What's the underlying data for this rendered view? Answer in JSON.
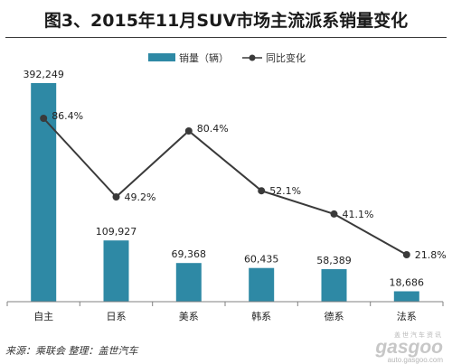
{
  "title": "图3、2015年11月SUV市场主流派系销量变化",
  "source": "来源：乘联会  整理：盖世汽车",
  "watermark": {
    "top": "盖世汽车资讯",
    "logo": "gasgoo",
    "url": "auto.gasgoo.com"
  },
  "colors": {
    "bar": "#2e89a5",
    "line": "#3a3a3a",
    "axis": "#808080"
  },
  "chart_data": {
    "type": "bar",
    "categories": [
      "自主",
      "日系",
      "美系",
      "韩系",
      "德系",
      "法系"
    ],
    "legend_position": "top",
    "grid": false,
    "series": [
      {
        "name": "销量（辆）",
        "type": "bar",
        "axis": "left",
        "values": [
          392249,
          109927,
          69368,
          60435,
          58389,
          18686
        ],
        "labels": [
          "392,249",
          "109,927",
          "69,368",
          "60,435",
          "58,389",
          "18,686"
        ]
      },
      {
        "name": "同比变化",
        "type": "line",
        "axis": "right",
        "values": [
          86.4,
          49.2,
          80.4,
          52.1,
          41.1,
          21.8
        ],
        "labels": [
          "86.4%",
          "49.2%",
          "80.4%",
          "52.1%",
          "41.1%",
          "21.8%"
        ]
      }
    ]
  }
}
